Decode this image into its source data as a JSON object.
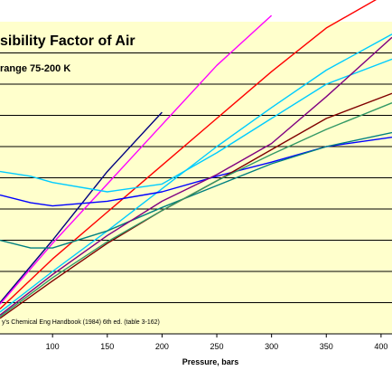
{
  "chart_data": {
    "type": "line",
    "title": "sibility Factor of Air",
    "subtitle": "range 75-200  K",
    "source_note": "y's Chemical Eng Handbook (1984) 6th ed.  (table 3-162)",
    "xlabel": "Pressure, bars",
    "ylabel": "",
    "xlim": [
      52,
      410
    ],
    "ylim": [
      0,
      10
    ],
    "x_ticks": [
      100,
      150,
      200,
      250,
      300,
      350,
      400
    ],
    "grid": true,
    "legend": "none",
    "colors": {
      "plot_bg": "#FFFFCC",
      "grid": "#000000",
      "frame": "#000000"
    },
    "series": [
      {
        "color": "#000080",
        "x": [
          52,
          100,
          150,
          200
        ],
        "y": [
          1.0,
          3.0,
          5.2,
          7.1
        ]
      },
      {
        "color": "#FF00FF",
        "x": [
          52,
          100,
          150,
          200,
          250,
          300
        ],
        "y": [
          0.95,
          2.9,
          4.8,
          6.7,
          8.6,
          10.2
        ]
      },
      {
        "color": "#FF0000",
        "x": [
          52,
          100,
          150,
          200,
          250,
          300,
          350,
          410
        ],
        "y": [
          0.8,
          2.4,
          3.9,
          5.4,
          6.9,
          8.4,
          9.8,
          11.0
        ]
      },
      {
        "color": "#00CCFF",
        "x": [
          52,
          80,
          100,
          150,
          200,
          250,
          300,
          350,
          410
        ],
        "y": [
          5.2,
          5.05,
          4.85,
          4.55,
          4.8,
          5.8,
          6.9,
          8.0,
          8.8
        ]
      },
      {
        "color": "#00CCFF",
        "x": [
          52,
          100,
          150,
          200,
          250,
          300,
          350,
          410
        ],
        "y": [
          0.7,
          2.0,
          3.3,
          4.65,
          6.0,
          7.25,
          8.45,
          9.6
        ]
      },
      {
        "color": "#0000FF",
        "x": [
          52,
          80,
          100,
          150,
          200,
          250,
          300,
          350,
          410
        ],
        "y": [
          4.45,
          4.2,
          4.1,
          4.25,
          4.55,
          5.05,
          5.5,
          6.0,
          6.3
        ]
      },
      {
        "color": "#008080",
        "x": [
          52,
          80,
          100,
          150,
          200,
          250,
          300,
          350,
          410
        ],
        "y": [
          3.0,
          2.75,
          2.75,
          3.3,
          4.05,
          4.75,
          5.45,
          6.0,
          6.45
        ]
      },
      {
        "color": "#800080",
        "x": [
          52,
          100,
          150,
          200,
          250,
          300,
          350,
          410
        ],
        "y": [
          0.6,
          1.9,
          3.15,
          4.25,
          5.1,
          6.1,
          7.6,
          9.5
        ]
      },
      {
        "color": "#800000",
        "x": [
          52,
          100,
          150,
          200,
          250,
          300,
          350,
          410
        ],
        "y": [
          0.5,
          1.7,
          2.9,
          3.95,
          4.9,
          5.9,
          6.9,
          7.7
        ]
      },
      {
        "color": "#339966",
        "x": [
          52,
          100,
          150,
          200,
          250,
          300,
          350,
          410
        ],
        "y": [
          0.55,
          1.8,
          2.95,
          3.95,
          4.9,
          5.75,
          6.55,
          7.4
        ]
      }
    ]
  }
}
